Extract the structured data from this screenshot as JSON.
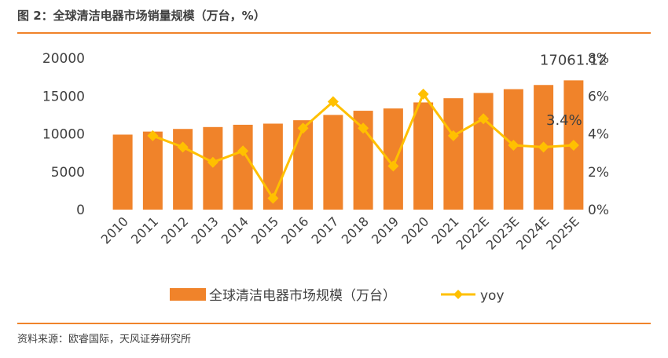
{
  "figure": {
    "title": "图 2：全球清洁电器市场销量规模（万台，%）",
    "source": "资料来源：欧睿国际，天风证券研究所"
  },
  "colors": {
    "bar": "#f0832a",
    "line": "#ffc000",
    "rule": "#f0832a",
    "text": "#404040"
  },
  "chart_data": {
    "type": "bar",
    "categories": [
      "2010",
      "2011",
      "2012",
      "2013",
      "2014",
      "2015",
      "2016",
      "2017",
      "2018",
      "2019",
      "2020",
      "2021",
      "2022E",
      "2023E",
      "2024E",
      "2025E"
    ],
    "series": [
      {
        "name": "全球清洁电器市场规模（万台）",
        "type": "bar",
        "axis": "left",
        "values": [
          9900,
          10300,
          10650,
          10900,
          11200,
          11350,
          11800,
          12500,
          13050,
          13350,
          14150,
          14700,
          15400,
          15900,
          16450,
          17061.12
        ]
      },
      {
        "name": "yoy",
        "type": "line",
        "axis": "right",
        "values": [
          null,
          3.9,
          3.3,
          2.5,
          3.1,
          0.6,
          4.3,
          5.7,
          4.3,
          2.3,
          6.1,
          3.9,
          4.8,
          3.4,
          3.3,
          3.4
        ]
      }
    ],
    "y_left": {
      "lim": [
        0,
        20000
      ],
      "ticks": [
        "0",
        "5000",
        "10000",
        "15000",
        "20000"
      ]
    },
    "y_right": {
      "lim": [
        0,
        8
      ],
      "ticks": [
        "0%",
        "2%",
        "4%",
        "6%",
        "8%"
      ]
    },
    "annotations": [
      {
        "text": "17061.12",
        "category": "2025E",
        "series": "bar"
      },
      {
        "text": "3.4%",
        "category": "2025E",
        "series": "line"
      }
    ],
    "legend": {
      "position": "bottom"
    },
    "grid": false
  }
}
